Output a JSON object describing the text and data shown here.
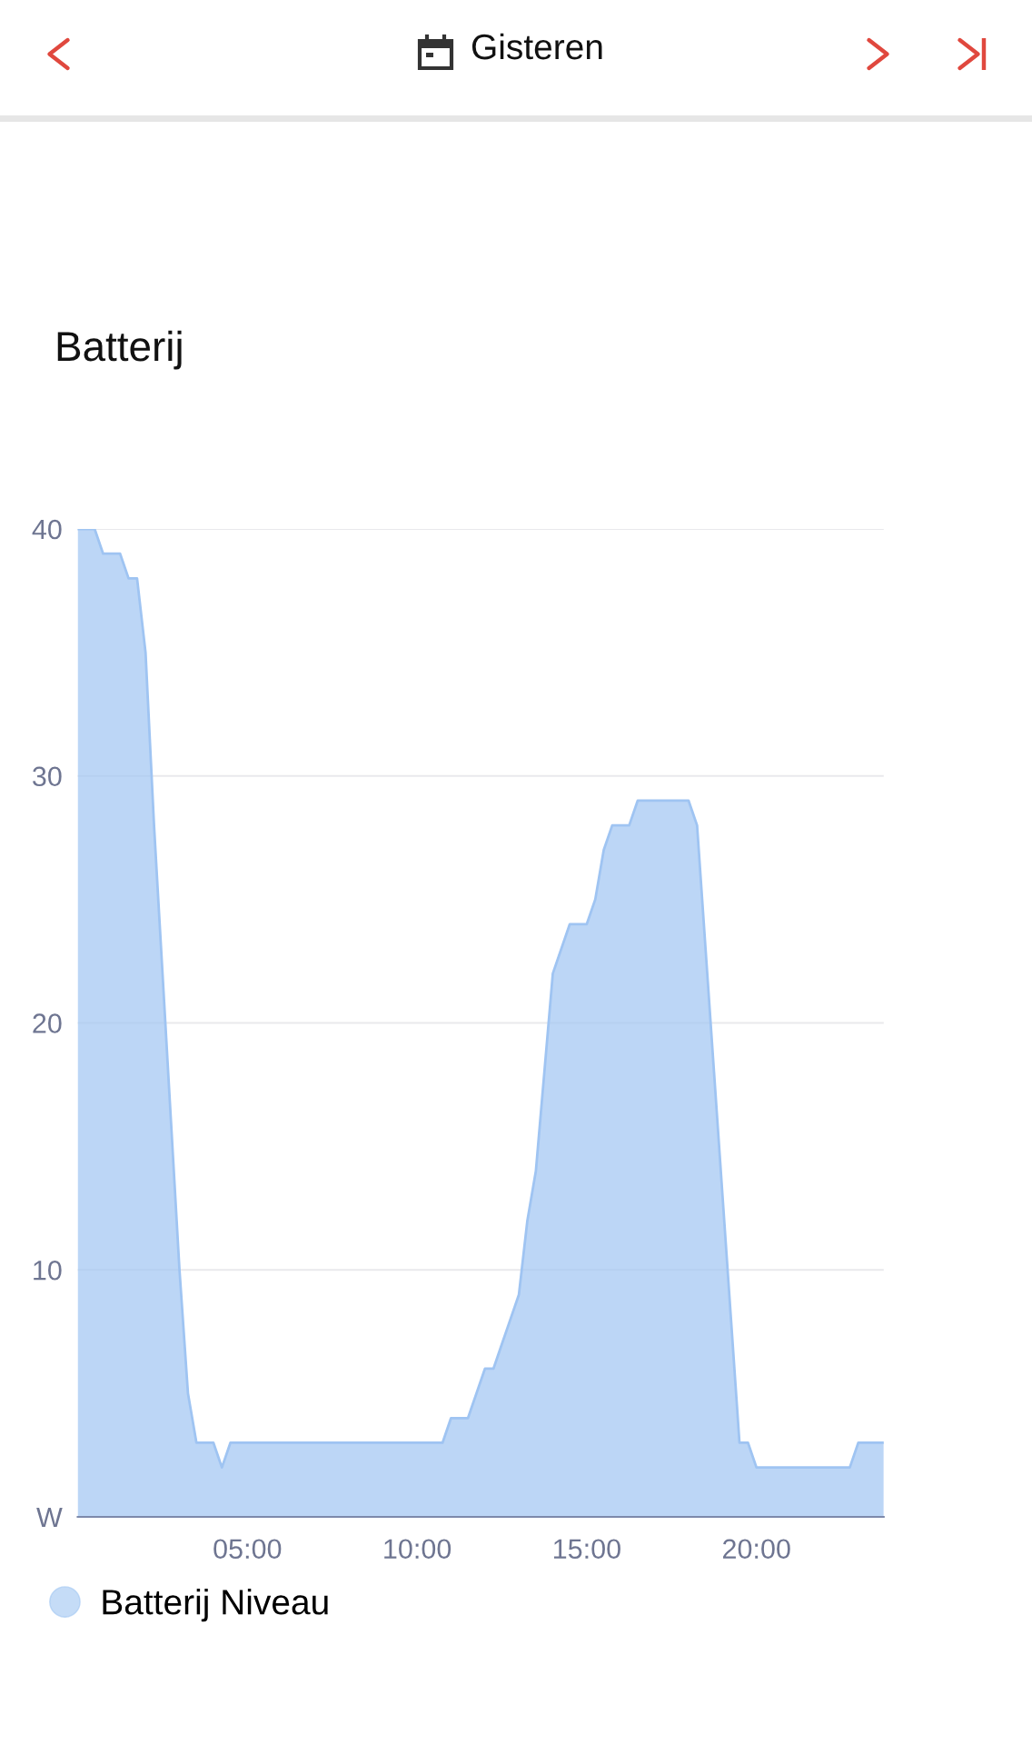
{
  "chart_data": {
    "type": "area",
    "title": "Batterij",
    "annotations": [
      "Gisteren"
    ],
    "x": [
      0,
      0.5,
      0.75,
      1.25,
      1.5,
      1.75,
      2.0,
      2.25,
      2.5,
      2.75,
      3.0,
      3.25,
      3.5,
      4.0,
      4.25,
      4.5,
      10.75,
      11.0,
      11.5,
      12.0,
      12.25,
      12.5,
      12.75,
      13.0,
      13.25,
      13.5,
      13.75,
      14.0,
      14.5,
      15.0,
      15.25,
      15.5,
      15.75,
      16.25,
      16.5,
      18.0,
      18.25,
      18.5,
      18.75,
      19.0,
      19.25,
      19.5,
      19.75,
      20.0,
      22.75,
      23.0,
      23.75
    ],
    "series": [
      {
        "name": "Batterij Niveau",
        "color": "#9fc4f2",
        "values": [
          40,
          40,
          39,
          39,
          38,
          38,
          35,
          28,
          22,
          16,
          10,
          5,
          3,
          3,
          2,
          3,
          3,
          4,
          4,
          6,
          6,
          7,
          8,
          9,
          12,
          14,
          18,
          22,
          24,
          24,
          25,
          27,
          28,
          28,
          29,
          29,
          28,
          23,
          18,
          13,
          8,
          3,
          3,
          2,
          2,
          3,
          3
        ]
      }
    ],
    "xlim": [
      0,
      23.75
    ],
    "xticks": [
      {
        "value": 5,
        "label": "05:00"
      },
      {
        "value": 10,
        "label": "10:00"
      },
      {
        "value": 15,
        "label": "15:00"
      },
      {
        "value": 20,
        "label": "20:00"
      }
    ],
    "ylim": [
      0,
      40
    ],
    "yticks": [
      {
        "value": 0,
        "label": "W"
      },
      10,
      20,
      30,
      40
    ],
    "grid": "y",
    "legend": "bottom left"
  }
}
